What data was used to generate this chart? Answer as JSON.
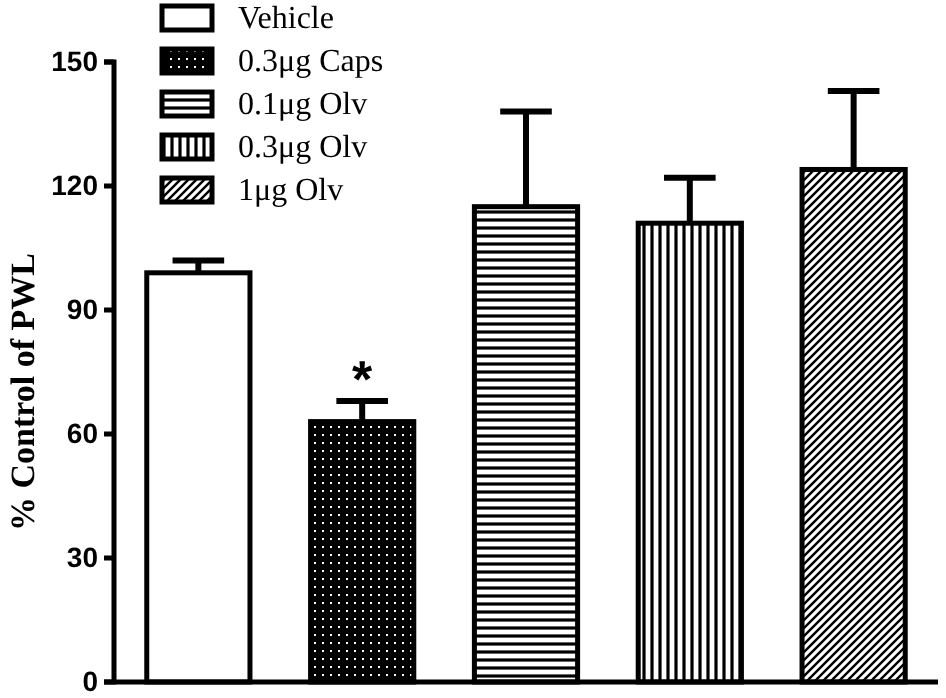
{
  "chart_data": {
    "type": "bar",
    "ylabel": "% Control of PWL",
    "categories": [
      null,
      null,
      null,
      null,
      null
    ],
    "series": [
      {
        "name": "Vehicle",
        "color": "#000000",
        "values": [
          99,
          null,
          null,
          null,
          null
        ],
        "errors": [
          3,
          null,
          null,
          null,
          null
        ]
      },
      {
        "name": "0.3μg Caps",
        "color": "#000000",
        "values": [
          null,
          63,
          null,
          null,
          null
        ],
        "errors": [
          null,
          5,
          null,
          null,
          null
        ]
      },
      {
        "name": "0.1μg Olv",
        "color": "#000000",
        "values": [
          null,
          null,
          115,
          null,
          null
        ],
        "errors": [
          null,
          null,
          23,
          null,
          null
        ]
      },
      {
        "name": "0.3μg Olv",
        "color": "#000000",
        "values": [
          null,
          null,
          null,
          111,
          null
        ],
        "errors": [
          null,
          null,
          null,
          11,
          null
        ]
      },
      {
        "name": "1μg Olv",
        "color": "#000000",
        "values": [
          null,
          null,
          null,
          null,
          124
        ],
        "errors": [
          null,
          null,
          null,
          null,
          19
        ]
      }
    ],
    "ylim": [
      0,
      150
    ],
    "yticks": [
      0,
      30,
      60,
      90,
      120,
      150
    ],
    "annotations": [
      {
        "text": "*",
        "y": 68
      }
    ],
    "legend": "top left",
    "grid": false
  }
}
